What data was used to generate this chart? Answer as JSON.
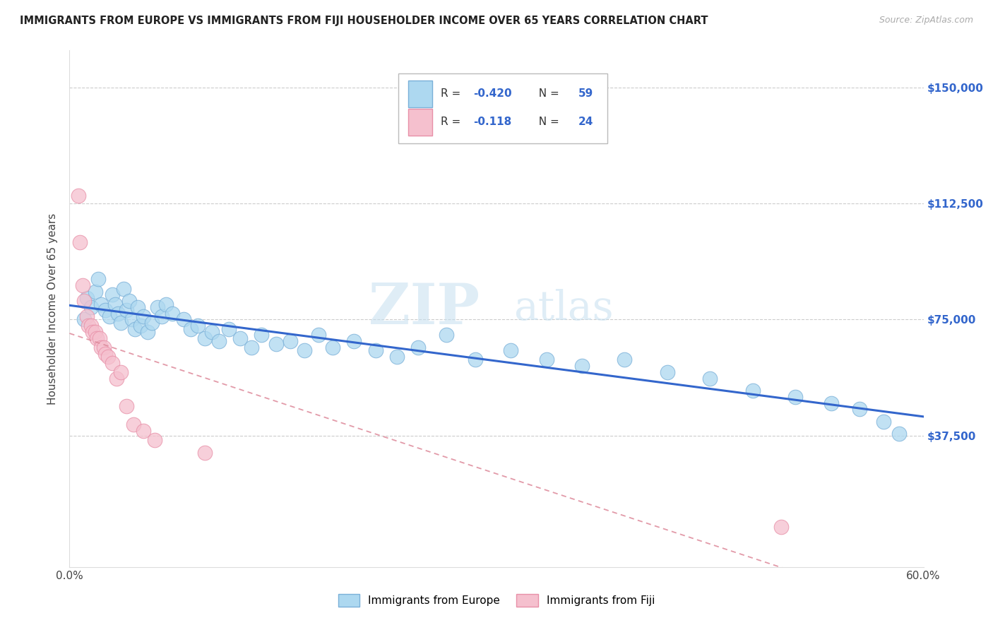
{
  "title": "IMMIGRANTS FROM EUROPE VS IMMIGRANTS FROM FIJI HOUSEHOLDER INCOME OVER 65 YEARS CORRELATION CHART",
  "source": "Source: ZipAtlas.com",
  "ylabel": "Householder Income Over 65 years",
  "yticks": [
    0,
    37500,
    75000,
    112500,
    150000
  ],
  "ytick_labels": [
    "",
    "$37,500",
    "$75,000",
    "$112,500",
    "$150,000"
  ],
  "legend_europe_r": "-0.420",
  "legend_europe_n": "59",
  "legend_fiji_r": "-0.118",
  "legend_fiji_n": "24",
  "watermark_zip": "ZIP",
  "watermark_atlas": "atlas",
  "europe_color": "#add8f0",
  "europe_edge": "#7ab0d8",
  "fiji_color": "#f5c0ce",
  "fiji_edge": "#e890a8",
  "europe_line_color": "#3366cc",
  "fiji_line_color": "#dd8899",
  "title_color": "#222222",
  "source_color": "#aaaaaa",
  "axis_label_color": "#444444",
  "ytick_color": "#3366cc",
  "grid_color": "#cccccc",
  "legend_text_color": "#333333",
  "legend_value_color": "#3366cc",
  "europe_scatter_x": [
    0.01,
    0.012,
    0.015,
    0.018,
    0.02,
    0.022,
    0.025,
    0.028,
    0.03,
    0.032,
    0.034,
    0.036,
    0.038,
    0.04,
    0.042,
    0.044,
    0.046,
    0.048,
    0.05,
    0.052,
    0.055,
    0.058,
    0.062,
    0.065,
    0.068,
    0.072,
    0.08,
    0.085,
    0.09,
    0.095,
    0.1,
    0.105,
    0.112,
    0.12,
    0.128,
    0.135,
    0.145,
    0.155,
    0.165,
    0.175,
    0.185,
    0.2,
    0.215,
    0.23,
    0.245,
    0.265,
    0.285,
    0.31,
    0.335,
    0.36,
    0.39,
    0.42,
    0.45,
    0.48,
    0.51,
    0.535,
    0.555,
    0.572,
    0.583
  ],
  "europe_scatter_y": [
    75000,
    82000,
    79000,
    84000,
    88000,
    80000,
    78000,
    76000,
    83000,
    80000,
    77000,
    74000,
    85000,
    78000,
    81000,
    75000,
    72000,
    79000,
    73000,
    76000,
    71000,
    74000,
    79000,
    76000,
    80000,
    77000,
    75000,
    72000,
    73000,
    69000,
    71000,
    68000,
    72000,
    69000,
    66000,
    70000,
    67000,
    68000,
    65000,
    70000,
    66000,
    68000,
    65000,
    63000,
    66000,
    70000,
    62000,
    65000,
    62000,
    60000,
    62000,
    58000,
    56000,
    52000,
    50000,
    48000,
    46000,
    42000,
    38000
  ],
  "fiji_scatter_x": [
    0.006,
    0.007,
    0.009,
    0.01,
    0.012,
    0.013,
    0.015,
    0.016,
    0.018,
    0.019,
    0.021,
    0.022,
    0.024,
    0.025,
    0.027,
    0.03,
    0.033,
    0.036,
    0.04,
    0.045,
    0.052,
    0.06,
    0.095,
    0.5
  ],
  "fiji_scatter_y": [
    115000,
    100000,
    86000,
    81000,
    76000,
    73000,
    73000,
    71000,
    71000,
    69000,
    69000,
    66000,
    66000,
    64000,
    63000,
    61000,
    56000,
    58000,
    47000,
    41000,
    39000,
    36000,
    32000,
    8000
  ],
  "xmin": 0.0,
  "xmax": 0.6,
  "ymin": -5000,
  "ymax": 162000,
  "dot_size": 220
}
